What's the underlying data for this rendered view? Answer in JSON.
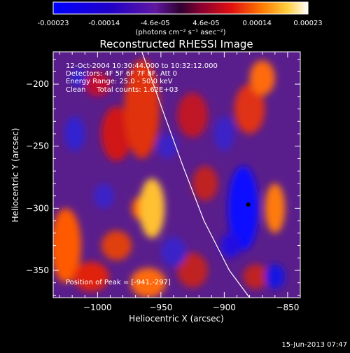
{
  "colorbar": {
    "tick_labels": [
      "-0.00023",
      "-0.00014",
      "-4.6e-05",
      "4.6e-05",
      "0.00014",
      "0.00023"
    ],
    "units_label": "(photons cm⁻² s⁻¹ asec⁻²)"
  },
  "chart_data": {
    "type": "heatmap",
    "title": "Reconstructed RHESSI Image",
    "xlabel": "Heliocentric X (arcsec)",
    "ylabel": "Heliocentric Y (arcsec)",
    "xlim": [
      -1035,
      -840
    ],
    "ylim": [
      -372,
      -174
    ],
    "x_ticks": [
      -1000,
      -950,
      -900,
      -850
    ],
    "y_ticks": [
      -200,
      -250,
      -300,
      -350
    ],
    "x_tick_labels": [
      "−1000",
      "−950",
      "−900",
      "−850"
    ],
    "y_tick_labels": [
      "−200",
      "−250",
      "−300",
      "−350"
    ],
    "clim": [
      -0.00023,
      0.00023
    ],
    "colormap": "rhessi-blue-red-white",
    "peak": {
      "x": -941,
      "y": -297
    },
    "marker": {
      "x": -881,
      "y": -297
    },
    "annotations": [
      "12-Oct-2004 10:30:44.000 to 10:32:12.000",
      "Detectors: 4F 5F 6F 7F 8F, Att 0",
      "Energy Range: 25.0 - 50.0 keV",
      "Clean     Total counts: 1.62E+03"
    ],
    "peak_label": "Position of Peak = [-941,-297]",
    "limb_curve": [
      [
        -965,
        -174
      ],
      [
        -949,
        -220
      ],
      [
        -933,
        -265
      ],
      [
        -916,
        -310
      ],
      [
        -896,
        -350
      ],
      [
        -880,
        -372
      ]
    ]
  },
  "footer": {
    "timestamp": "15-Jun-2013 07:47"
  }
}
